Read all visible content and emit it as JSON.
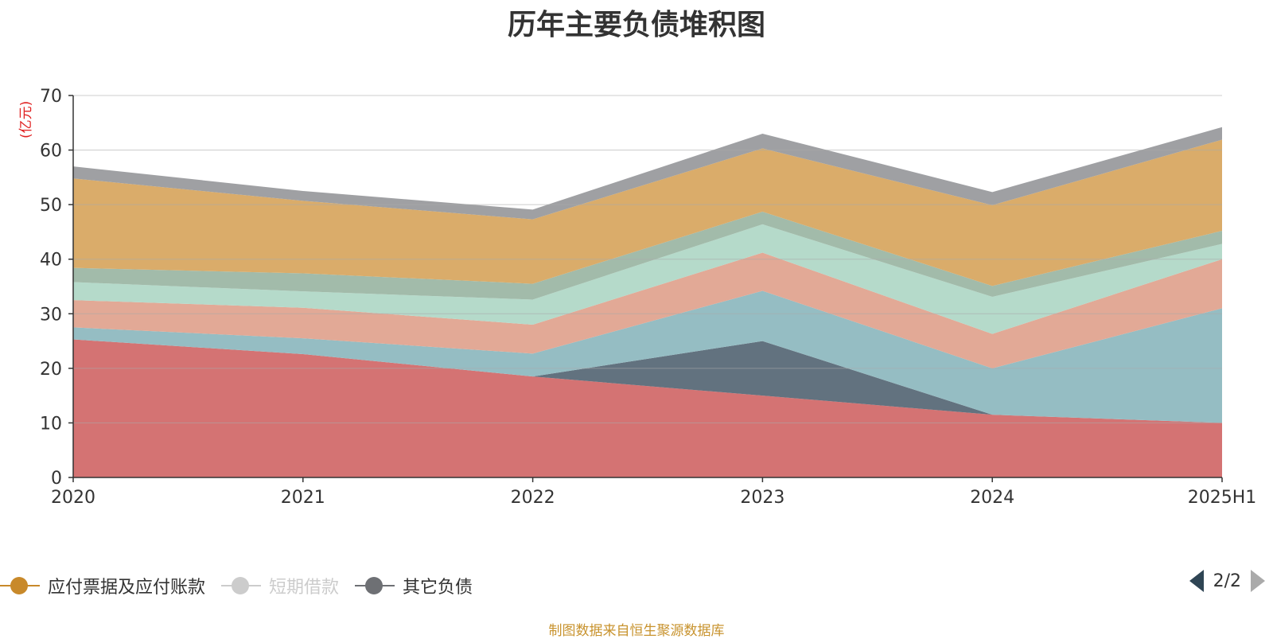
{
  "title": "历年主要负债堆积图",
  "unit_label": "(亿元)",
  "source_note": "制图数据来自恒生聚源数据库",
  "pager": {
    "text": "2/2"
  },
  "legend": [
    {
      "name": "应付票据及应付账款",
      "color": "#c8892a",
      "active": true
    },
    {
      "name": "短期借款",
      "color": "#cccccc",
      "active": false
    },
    {
      "name": "其它负债",
      "color": "#6e7074",
      "active": true
    }
  ],
  "chart_data": {
    "type": "area",
    "stacked": true,
    "title": "历年主要负债堆积图",
    "ylabel": "(亿元)",
    "x": [
      "2020",
      "2021",
      "2022",
      "2023",
      "2024",
      "2025H1"
    ],
    "ylim": [
      0,
      70
    ],
    "yticks": [
      0,
      10,
      20,
      30,
      40,
      50,
      60,
      70
    ],
    "grid": true,
    "series": [
      {
        "color": "#d26b6b",
        "values": [
          25.3,
          22.6,
          18.5,
          15.0,
          11.5,
          10.0
        ]
      },
      {
        "color": "#5a6a78",
        "values": [
          0.0,
          0.0,
          0.0,
          10.0,
          0.0,
          0.0
        ]
      },
      {
        "color": "#8fb9c0",
        "values": [
          2.2,
          2.9,
          4.2,
          9.2,
          8.5,
          21.0
        ]
      },
      {
        "color": "#e0a490",
        "values": [
          5.0,
          5.6,
          5.3,
          7.0,
          6.3,
          9.0
        ]
      },
      {
        "color": "#b1d8c7",
        "values": [
          3.3,
          3.0,
          4.6,
          5.2,
          6.8,
          2.8
        ]
      },
      {
        "color": "#9db7a5",
        "values": [
          2.6,
          3.3,
          2.9,
          2.3,
          2.0,
          2.4
        ]
      },
      {
        "name": "应付票据及应付账款",
        "color": "#d8a862",
        "values": [
          16.4,
          13.3,
          11.8,
          11.6,
          14.8,
          16.7
        ]
      },
      {
        "name": "其它负债",
        "color": "#9a9b9e",
        "values": [
          2.2,
          1.8,
          1.8,
          2.7,
          2.4,
          2.3
        ]
      }
    ]
  }
}
